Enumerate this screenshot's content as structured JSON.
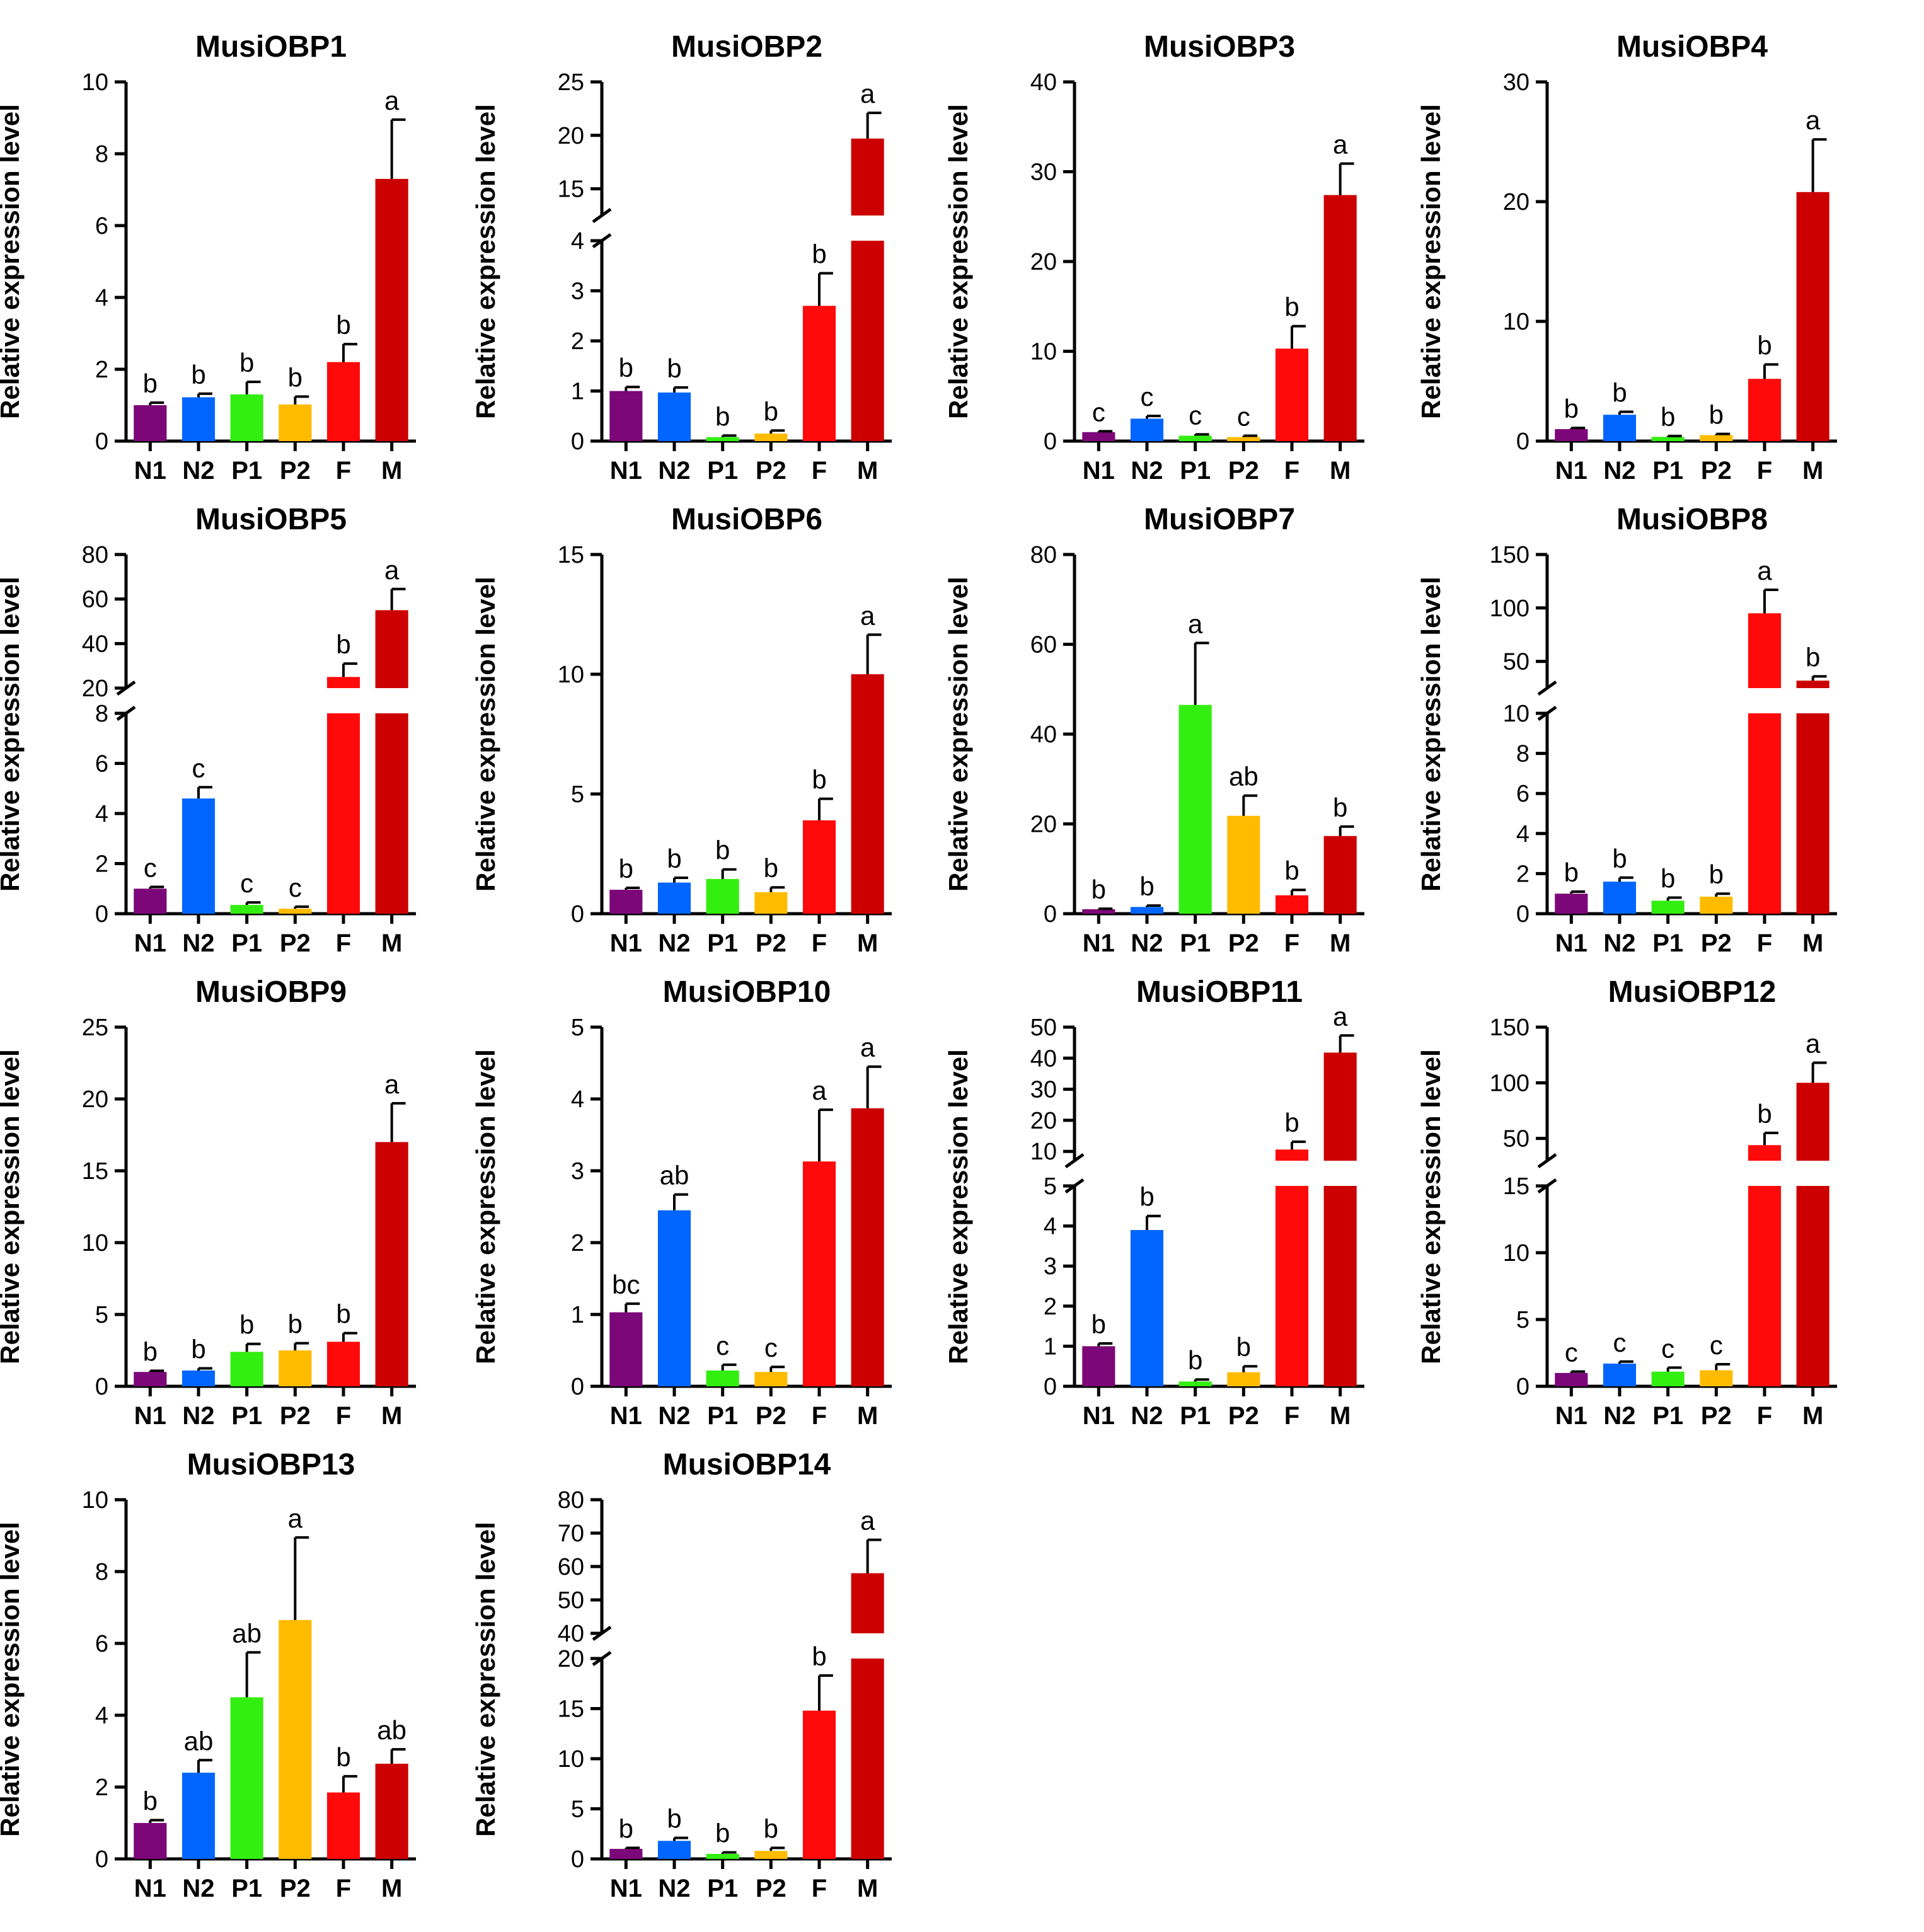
{
  "colors": {
    "N1": "#7b0779",
    "N2": "#0066ff",
    "P1": "#33ee11",
    "P2": "#ffbb00",
    "F": "#ff0a0a",
    "M": "#cc0000"
  },
  "chart_data": [
    {
      "type": "bar",
      "title": "MusiOBP1",
      "ylabel": "Relative expression level",
      "categories": [
        "N1",
        "N2",
        "P1",
        "P2",
        "F",
        "M"
      ],
      "values": [
        1.0,
        1.22,
        1.3,
        1.02,
        2.2,
        7.3
      ],
      "errors": [
        0.07,
        0.1,
        0.35,
        0.22,
        0.5,
        1.65
      ],
      "significance": [
        "b",
        "b",
        "b",
        "b",
        "b",
        "a"
      ],
      "ylim": [
        0,
        10
      ],
      "segments": [
        {
          "range": [
            0,
            10
          ],
          "ticks": [
            0,
            2,
            4,
            6,
            8,
            10
          ]
        }
      ]
    },
    {
      "type": "bar",
      "title": "MusiOBP2",
      "ylabel": "Relative expression level",
      "categories": [
        "N1",
        "N2",
        "P1",
        "P2",
        "F",
        "M"
      ],
      "values": [
        1.0,
        0.97,
        0.08,
        0.15,
        2.7,
        19.7
      ],
      "errors": [
        0.08,
        0.1,
        0.03,
        0.06,
        0.65,
        2.4
      ],
      "significance": [
        "b",
        "b",
        "b",
        "b",
        "b",
        "a"
      ],
      "ylim": [
        0,
        25
      ],
      "segments": [
        {
          "range": [
            0,
            4
          ],
          "ticks": [
            0,
            1,
            2,
            3,
            4
          ]
        },
        {
          "range": [
            12.5,
            25
          ],
          "ticks": [
            15,
            20,
            25
          ]
        }
      ]
    },
    {
      "type": "bar",
      "title": "MusiOBP3",
      "ylabel": "Relative expression level",
      "categories": [
        "N1",
        "N2",
        "P1",
        "P2",
        "F",
        "M"
      ],
      "values": [
        1.0,
        2.5,
        0.6,
        0.45,
        10.3,
        27.4
      ],
      "errors": [
        0.1,
        0.3,
        0.15,
        0.15,
        2.5,
        3.5
      ],
      "significance": [
        "c",
        "c",
        "c",
        "c",
        "b",
        "a"
      ],
      "ylim": [
        0,
        40
      ],
      "segments": [
        {
          "range": [
            0,
            40
          ],
          "ticks": [
            0,
            10,
            20,
            30,
            40
          ]
        }
      ]
    },
    {
      "type": "bar",
      "title": "MusiOBP4",
      "ylabel": "Relative expression level",
      "categories": [
        "N1",
        "N2",
        "P1",
        "P2",
        "F",
        "M"
      ],
      "values": [
        1.0,
        2.2,
        0.35,
        0.5,
        5.2,
        20.8
      ],
      "errors": [
        0.1,
        0.25,
        0.08,
        0.1,
        1.2,
        4.4
      ],
      "significance": [
        "b",
        "b",
        "b",
        "b",
        "b",
        "a"
      ],
      "ylim": [
        0,
        30
      ],
      "segments": [
        {
          "range": [
            0,
            30
          ],
          "ticks": [
            0,
            10,
            20,
            30
          ]
        }
      ]
    },
    {
      "type": "bar",
      "title": "MusiOBP5",
      "ylabel": "Relative expression level",
      "categories": [
        "N1",
        "N2",
        "P1",
        "P2",
        "F",
        "M"
      ],
      "values": [
        1.0,
        4.6,
        0.35,
        0.2,
        25.0,
        55.0
      ],
      "errors": [
        0.07,
        0.45,
        0.1,
        0.08,
        6.0,
        9.5
      ],
      "significance": [
        "c",
        "c",
        "c",
        "c",
        "b",
        "a"
      ],
      "ylim": [
        0,
        80
      ],
      "segments": [
        {
          "range": [
            0,
            8
          ],
          "ticks": [
            0,
            2,
            4,
            6,
            8
          ]
        },
        {
          "range": [
            20,
            80
          ],
          "ticks": [
            20,
            40,
            60,
            80
          ]
        }
      ]
    },
    {
      "type": "bar",
      "title": "MusiOBP6",
      "ylabel": "Relative expression level",
      "categories": [
        "N1",
        "N2",
        "P1",
        "P2",
        "F",
        "M"
      ],
      "values": [
        1.0,
        1.3,
        1.45,
        0.9,
        3.9,
        10.0
      ],
      "errors": [
        0.08,
        0.2,
        0.4,
        0.2,
        0.9,
        1.65
      ],
      "significance": [
        "b",
        "b",
        "b",
        "b",
        "b",
        "a"
      ],
      "ylim": [
        0,
        15
      ],
      "segments": [
        {
          "range": [
            0,
            15
          ],
          "ticks": [
            0,
            5,
            10,
            15
          ]
        }
      ]
    },
    {
      "type": "bar",
      "title": "MusiOBP7",
      "ylabel": "Relative expression level",
      "categories": [
        "N1",
        "N2",
        "P1",
        "P2",
        "F",
        "M"
      ],
      "values": [
        1.0,
        1.5,
        46.5,
        21.8,
        4.1,
        17.3
      ],
      "errors": [
        0.1,
        0.3,
        13.8,
        4.5,
        1.2,
        2.1
      ],
      "significance": [
        "b",
        "b",
        "a",
        "ab",
        "b",
        "b"
      ],
      "ylim": [
        0,
        80
      ],
      "segments": [
        {
          "range": [
            0,
            80
          ],
          "ticks": [
            0,
            20,
            40,
            60,
            80
          ]
        }
      ]
    },
    {
      "type": "bar",
      "title": "MusiOBP8",
      "ylabel": "Relative expression level",
      "categories": [
        "N1",
        "N2",
        "P1",
        "P2",
        "F",
        "M"
      ],
      "values": [
        1.0,
        1.6,
        0.65,
        0.85,
        95.0,
        32.0
      ],
      "errors": [
        0.1,
        0.2,
        0.15,
        0.15,
        22.0,
        4.0
      ],
      "significance": [
        "b",
        "b",
        "b",
        "b",
        "a",
        "b"
      ],
      "ylim": [
        0,
        150
      ],
      "segments": [
        {
          "range": [
            0,
            10
          ],
          "ticks": [
            0,
            2,
            4,
            6,
            8,
            10
          ]
        },
        {
          "range": [
            25,
            150
          ],
          "ticks": [
            50,
            100,
            150
          ]
        }
      ]
    },
    {
      "type": "bar",
      "title": "MusiOBP9",
      "ylabel": "Relative expression level",
      "categories": [
        "N1",
        "N2",
        "P1",
        "P2",
        "F",
        "M"
      ],
      "values": [
        1.0,
        1.1,
        2.4,
        2.5,
        3.1,
        17.0
      ],
      "errors": [
        0.08,
        0.15,
        0.55,
        0.5,
        0.6,
        2.7
      ],
      "significance": [
        "b",
        "b",
        "b",
        "b",
        "b",
        "a"
      ],
      "ylim": [
        0,
        25
      ],
      "segments": [
        {
          "range": [
            0,
            25
          ],
          "ticks": [
            0,
            5,
            10,
            15,
            20,
            25
          ]
        }
      ]
    },
    {
      "type": "bar",
      "title": "MusiOBP10",
      "ylabel": "Relative expression level",
      "categories": [
        "N1",
        "N2",
        "P1",
        "P2",
        "F",
        "M"
      ],
      "values": [
        1.03,
        2.45,
        0.22,
        0.2,
        3.13,
        3.87
      ],
      "errors": [
        0.12,
        0.22,
        0.08,
        0.07,
        0.72,
        0.58
      ],
      "significance": [
        "bc",
        "ab",
        "c",
        "c",
        "a",
        "a"
      ],
      "ylim": [
        0,
        5
      ],
      "segments": [
        {
          "range": [
            0,
            5
          ],
          "ticks": [
            0,
            1,
            2,
            3,
            4,
            5
          ]
        }
      ]
    },
    {
      "type": "bar",
      "title": "MusiOBP11",
      "ylabel": "Relative expression level",
      "categories": [
        "N1",
        "N2",
        "P1",
        "P2",
        "F",
        "M"
      ],
      "values": [
        1.0,
        3.9,
        0.12,
        0.35,
        10.6,
        41.8
      ],
      "errors": [
        0.07,
        0.35,
        0.05,
        0.15,
        2.5,
        5.5
      ],
      "significance": [
        "b",
        "b",
        "b",
        "b",
        "b",
        "a"
      ],
      "ylim": [
        0,
        50
      ],
      "segments": [
        {
          "range": [
            0,
            5
          ],
          "ticks": [
            0,
            1,
            2,
            3,
            4,
            5
          ]
        },
        {
          "range": [
            7,
            50
          ],
          "ticks": [
            10,
            20,
            30,
            40,
            50
          ]
        }
      ]
    },
    {
      "type": "bar",
      "title": "MusiOBP12",
      "ylabel": "Relative expression level",
      "categories": [
        "N1",
        "N2",
        "P1",
        "P2",
        "F",
        "M"
      ],
      "values": [
        1.0,
        1.7,
        1.1,
        1.2,
        44.0,
        100.0
      ],
      "errors": [
        0.1,
        0.15,
        0.3,
        0.45,
        11.0,
        18.0
      ],
      "significance": [
        "c",
        "c",
        "c",
        "c",
        "b",
        "a"
      ],
      "ylim": [
        0,
        150
      ],
      "segments": [
        {
          "range": [
            0,
            15
          ],
          "ticks": [
            0,
            5,
            10,
            15
          ]
        },
        {
          "range": [
            30,
            150
          ],
          "ticks": [
            50,
            100,
            150
          ]
        }
      ]
    },
    {
      "type": "bar",
      "title": "MusiOBP13",
      "ylabel": "Relative expression level",
      "categories": [
        "N1",
        "N2",
        "P1",
        "P2",
        "F",
        "M"
      ],
      "values": [
        1.0,
        2.4,
        4.5,
        6.65,
        1.85,
        2.65
      ],
      "errors": [
        0.08,
        0.35,
        1.25,
        2.3,
        0.45,
        0.4
      ],
      "significance": [
        "b",
        "ab",
        "ab",
        "a",
        "b",
        "ab"
      ],
      "ylim": [
        0,
        10
      ],
      "segments": [
        {
          "range": [
            0,
            10
          ],
          "ticks": [
            0,
            2,
            4,
            6,
            8,
            10
          ]
        }
      ]
    },
    {
      "type": "bar",
      "title": "MusiOBP14",
      "ylabel": "Relative expression level",
      "categories": [
        "N1",
        "N2",
        "P1",
        "P2",
        "F",
        "M"
      ],
      "values": [
        1.0,
        1.8,
        0.5,
        0.8,
        14.8,
        58.0
      ],
      "errors": [
        0.1,
        0.3,
        0.15,
        0.3,
        3.5,
        10.0
      ],
      "significance": [
        "b",
        "b",
        "b",
        "b",
        "b",
        "a"
      ],
      "ylim": [
        0,
        80
      ],
      "segments": [
        {
          "range": [
            0,
            20
          ],
          "ticks": [
            0,
            5,
            10,
            15,
            20
          ]
        },
        {
          "range": [
            40,
            80
          ],
          "ticks": [
            40,
            50,
            60,
            70,
            80
          ]
        }
      ]
    }
  ]
}
